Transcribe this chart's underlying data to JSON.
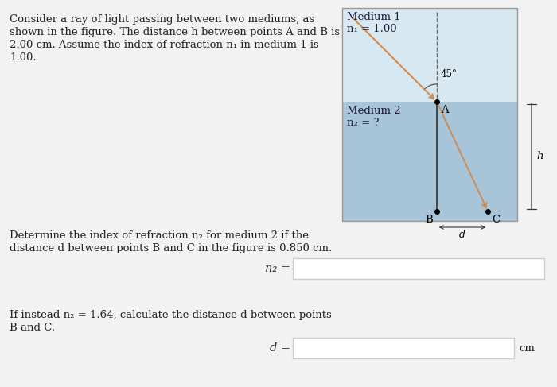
{
  "bg_color": "#f2f2f2",
  "text_problem_line1": "Consider a ray of light passing between two mediums, as",
  "text_problem_line2": "shown in the figure. The distance h between points A and B is",
  "text_problem_line3": "2.00 cm. Assume the index of refraction n₁ in medium 1 is",
  "text_problem_line4": "1.00.",
  "text_q1_line1": "Determine the index of refraction n₂ for medium 2 if the",
  "text_q1_line2": "distance d between points B and C in the figure is 0.850 cm.",
  "text_q2_line1": "If instead n₂ = 1.64, calculate the distance d between points",
  "text_q2_line2": "B and C.",
  "label_n2": "n₂ =",
  "label_d": "d =",
  "label_cm": "cm",
  "medium1_label": "Medium 1",
  "medium1_n": "n₁ = 1.00",
  "medium2_label": "Medium 2",
  "medium2_n": "n₂ = ?",
  "angle_label": "45°",
  "point_A": "A",
  "point_B": "B",
  "point_C": "C",
  "dim_h": "h",
  "dim_d": "d",
  "medium1_color": "#d8e8f0",
  "medium2_color": "#a8c4d8",
  "ray_color": "#c89060",
  "normal_color": "#666666",
  "text_color": "#222222",
  "box_color": "#cccccc"
}
